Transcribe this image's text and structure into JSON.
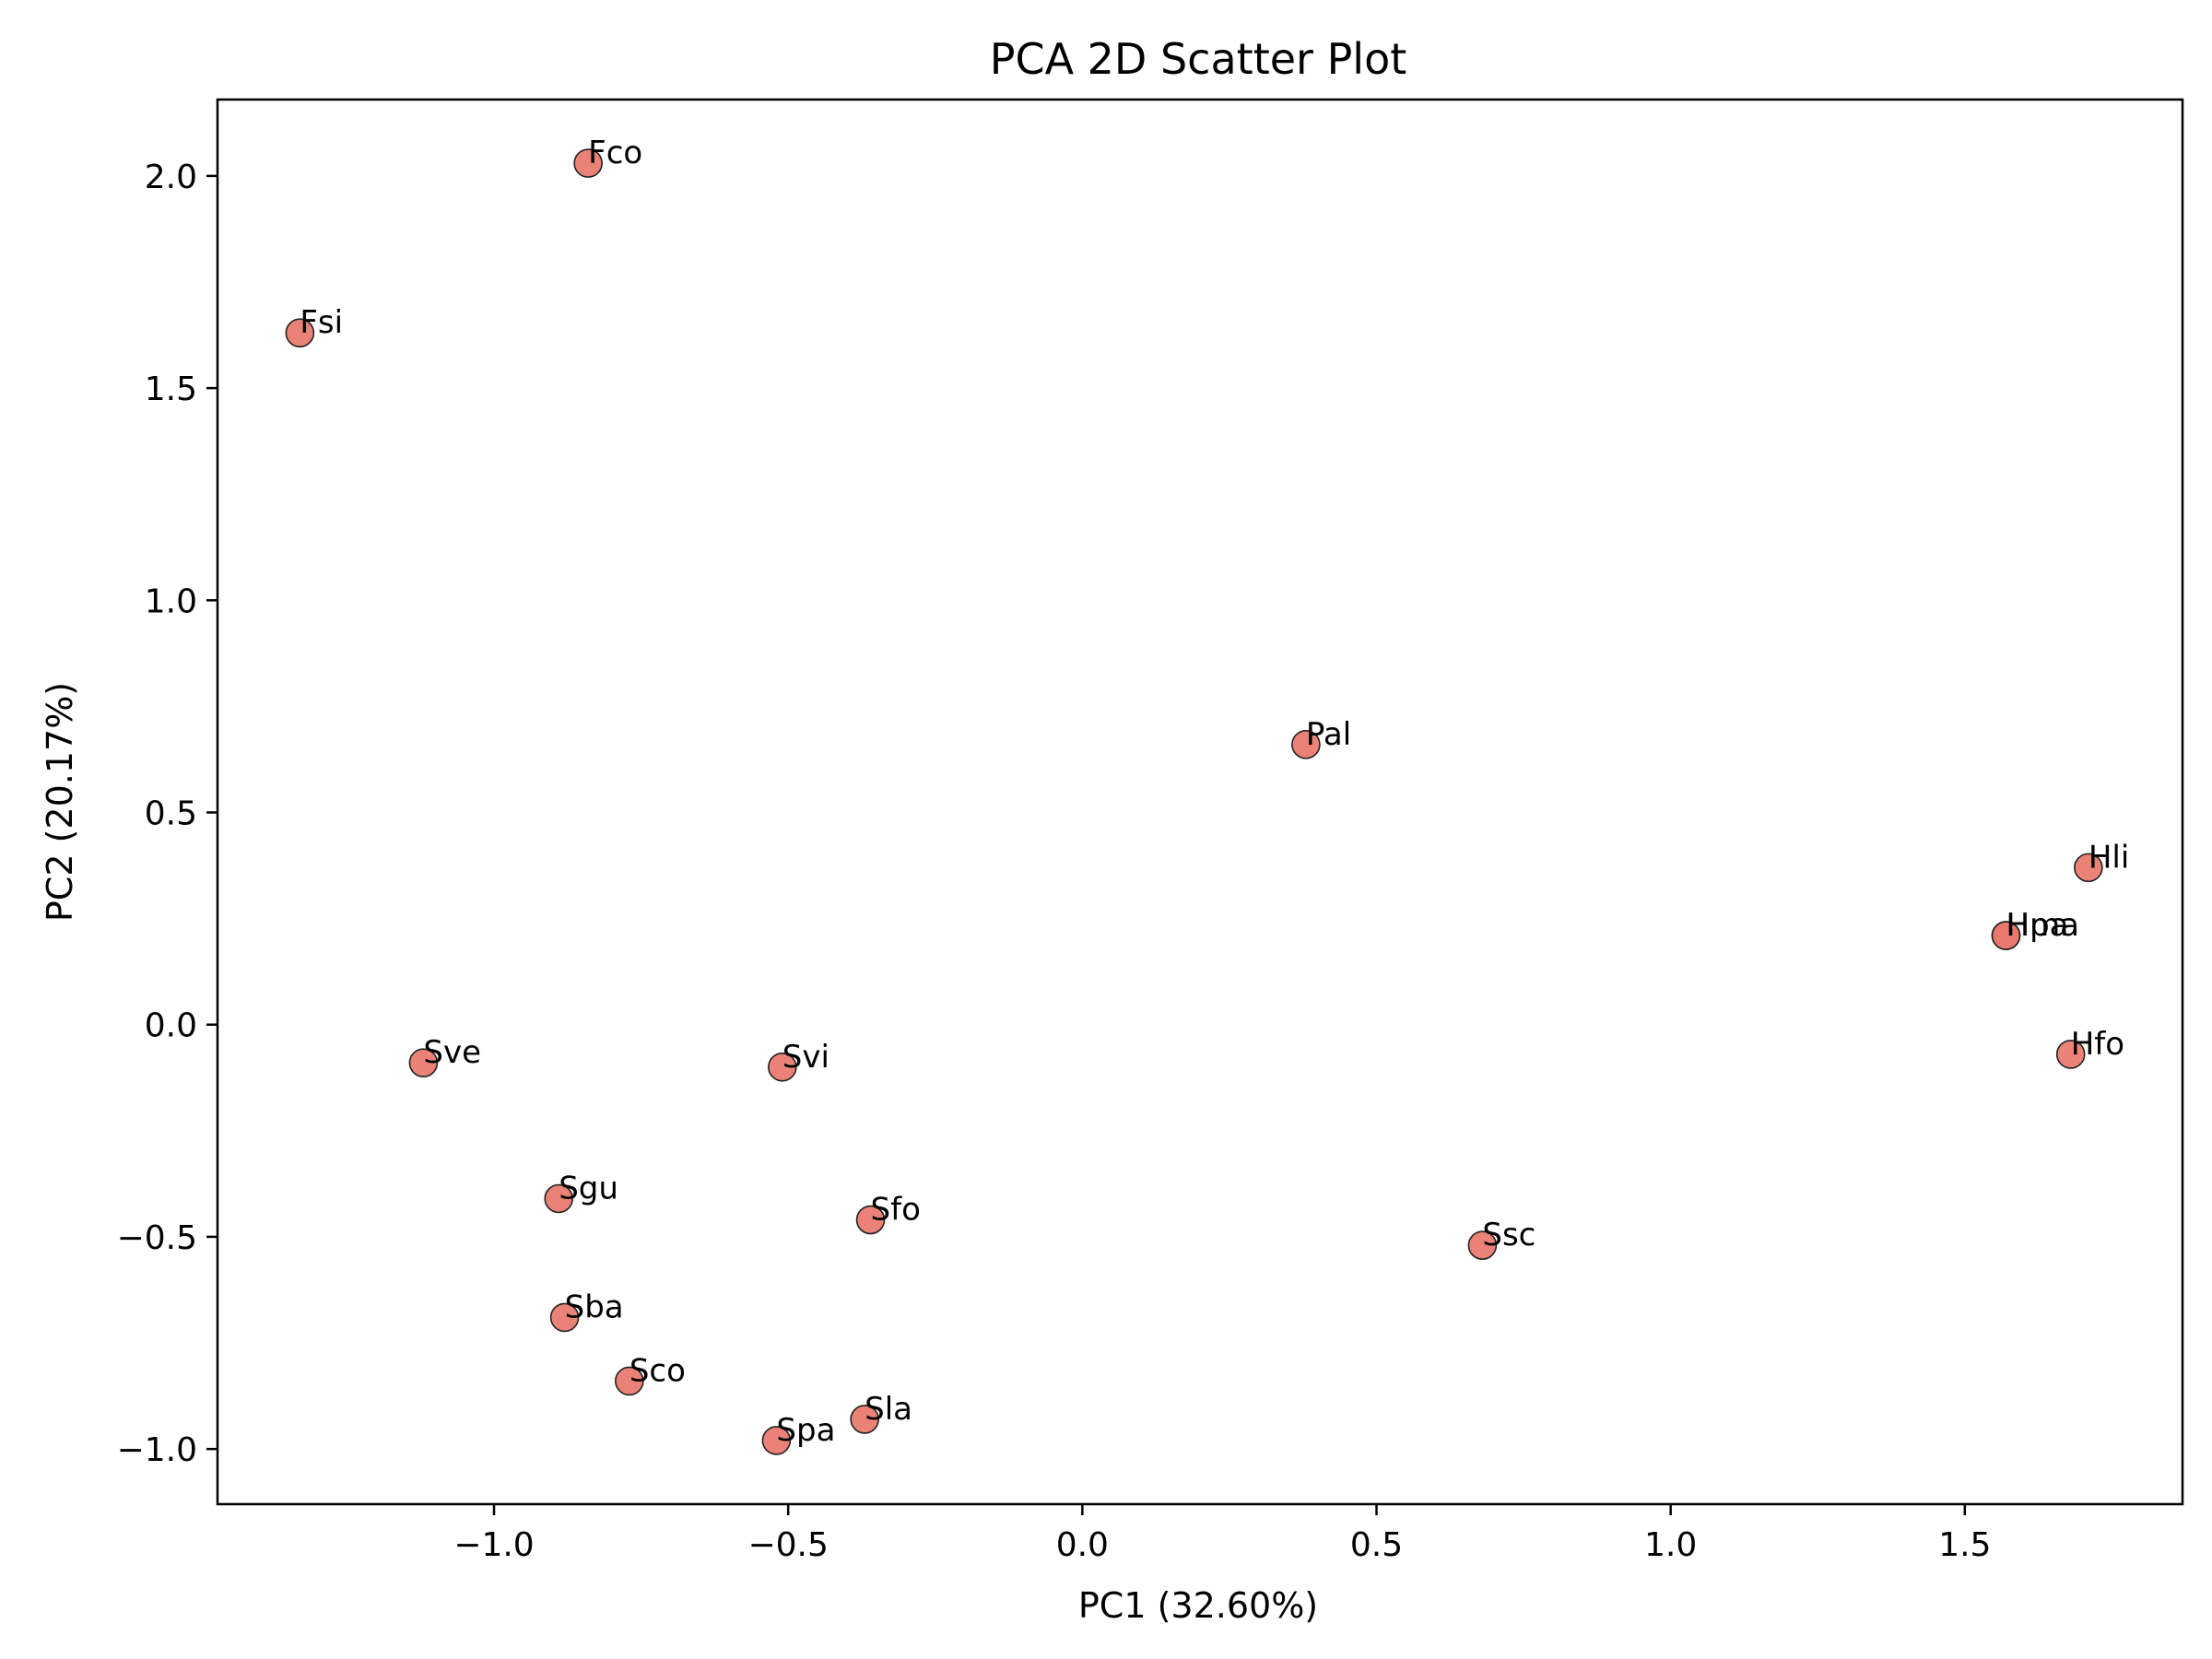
{
  "chart_data": {
    "type": "scatter",
    "title": "PCA 2D Scatter Plot",
    "xlabel": "PC1 (32.60%)",
    "ylabel": "PC2 (20.17%)",
    "xlim": [
      -1.47,
      1.87
    ],
    "ylim": [
      -1.13,
      2.18
    ],
    "xticks": [
      {
        "value": -1.0,
        "label": "−1.0"
      },
      {
        "value": -0.5,
        "label": "−0.5"
      },
      {
        "value": 0.0,
        "label": "0.0"
      },
      {
        "value": 0.5,
        "label": "0.5"
      },
      {
        "value": 1.0,
        "label": "1.0"
      },
      {
        "value": 1.5,
        "label": "1.5"
      }
    ],
    "yticks": [
      {
        "value": -1.0,
        "label": "−1.0"
      },
      {
        "value": -0.5,
        "label": "−0.5"
      },
      {
        "value": 0.0,
        "label": "0.0"
      },
      {
        "value": 0.5,
        "label": "0.5"
      },
      {
        "value": 1.0,
        "label": "1.0"
      },
      {
        "value": 1.5,
        "label": "1.5"
      },
      {
        "value": 2.0,
        "label": "2.0"
      }
    ],
    "grid": false,
    "marker_color": "#e8776c",
    "marker_edge_color": "#222222",
    "points": [
      {
        "label": "Fco",
        "x": -0.84,
        "y": 2.03
      },
      {
        "label": "Fsi",
        "x": -1.33,
        "y": 1.63
      },
      {
        "label": "Pal",
        "x": 0.38,
        "y": 0.66
      },
      {
        "label": "Hli",
        "x": 1.71,
        "y": 0.37
      },
      {
        "label": "Hma",
        "x": 1.57,
        "y": 0.21
      },
      {
        "label": "Hpa",
        "x": 1.57,
        "y": 0.21
      },
      {
        "label": "Hfo",
        "x": 1.68,
        "y": -0.07
      },
      {
        "label": "Sve",
        "x": -1.12,
        "y": -0.09
      },
      {
        "label": "Svi",
        "x": -0.51,
        "y": -0.1
      },
      {
        "label": "Sgu",
        "x": -0.89,
        "y": -0.41
      },
      {
        "label": "Sfo",
        "x": -0.36,
        "y": -0.46
      },
      {
        "label": "Ssc",
        "x": 0.68,
        "y": -0.52
      },
      {
        "label": "Sba",
        "x": -0.88,
        "y": -0.69
      },
      {
        "label": "Sco",
        "x": -0.77,
        "y": -0.84
      },
      {
        "label": "Sla",
        "x": -0.37,
        "y": -0.93
      },
      {
        "label": "Spa",
        "x": -0.52,
        "y": -0.98
      }
    ]
  }
}
